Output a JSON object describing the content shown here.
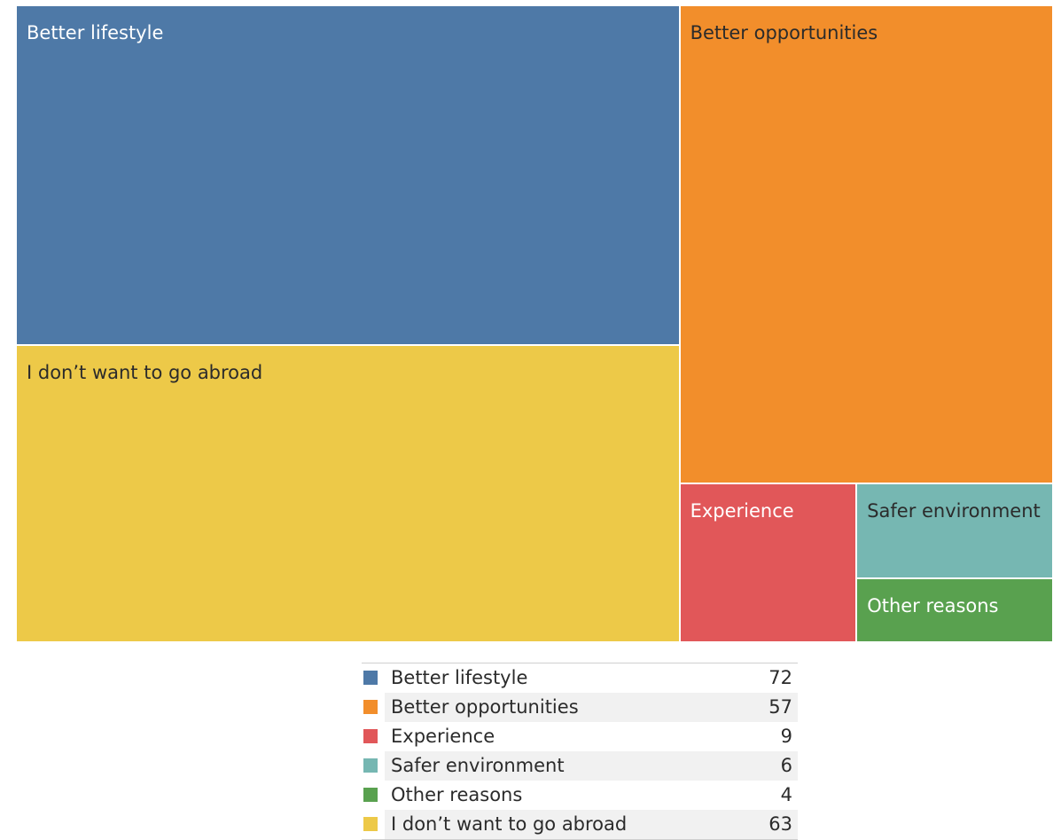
{
  "chart_data": {
    "type": "treemap",
    "items": [
      {
        "label": "Better lifestyle",
        "value": 72,
        "color": "#4e79a7",
        "text_color": "#ffffff"
      },
      {
        "label": "Better opportunities",
        "value": 57,
        "color": "#f28e2b",
        "text_color": "#2b2b2b"
      },
      {
        "label": "Experience",
        "value": 9,
        "color": "#e15759",
        "text_color": "#ffffff"
      },
      {
        "label": "Safer environment",
        "value": 6,
        "color": "#76b7b2",
        "text_color": "#2b2b2b"
      },
      {
        "label": "Other reasons",
        "value": 4,
        "color": "#59a14f",
        "text_color": "#ffffff"
      },
      {
        "label": "I don’t want to go abroad",
        "value": 63,
        "color": "#edc948",
        "text_color": "#2b2b2b"
      }
    ],
    "legend_position": "bottom"
  }
}
